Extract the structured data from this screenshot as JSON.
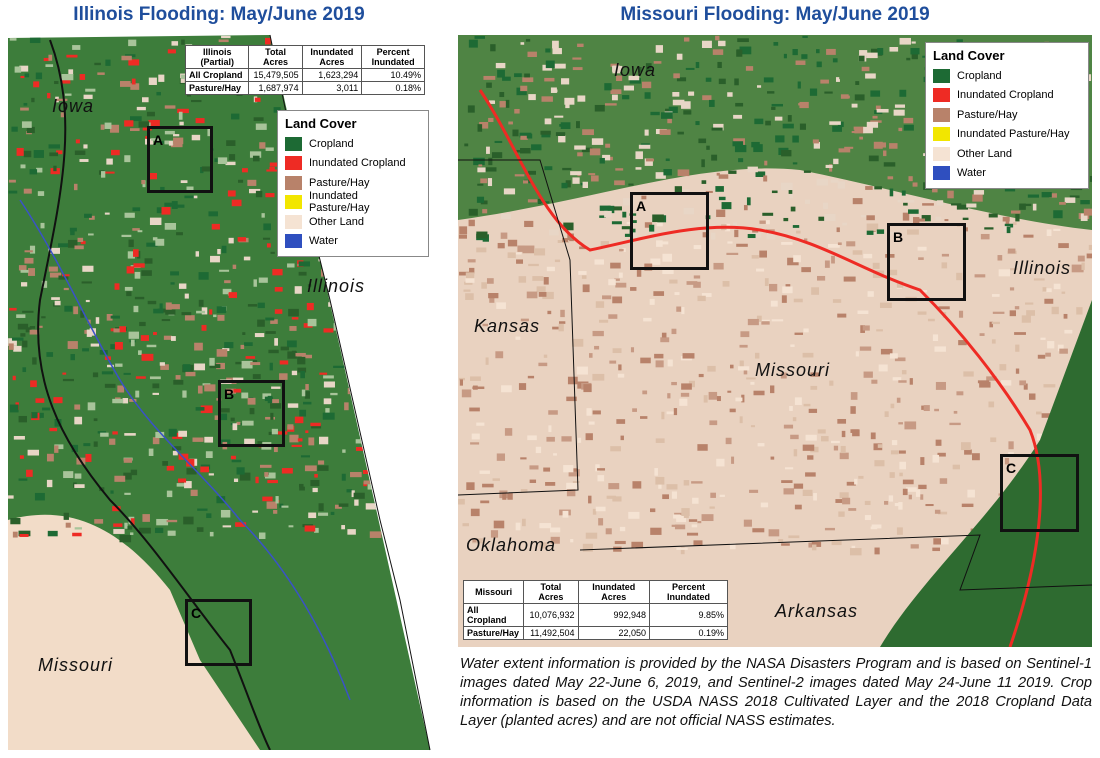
{
  "illinois": {
    "title": "Illinois Flooding: May/June 2019",
    "table": {
      "header": [
        "Illinois (Partial)",
        "Total Acres",
        "Inundated Acres",
        "Percent Inundated"
      ],
      "rows": [
        [
          "All Cropland",
          "15,479,505",
          "1,623,294",
          "10.49%"
        ],
        [
          "Pasture/Hay",
          "1,687,974",
          "3,011",
          "0.18%"
        ]
      ]
    },
    "legend": {
      "title": "Land Cover",
      "items": [
        {
          "label": "Cropland",
          "color": "#1d6a34"
        },
        {
          "label": "Inundated Cropland",
          "color": "#ee2b24"
        },
        {
          "label": "Pasture/Hay",
          "color": "#b8826a"
        },
        {
          "label": "Inundated Pasture/Hay",
          "color": "#f2e600"
        },
        {
          "label": "Other Land",
          "color": "#f5e3d3"
        },
        {
          "label": "Water",
          "color": "#2f4fbf"
        }
      ]
    },
    "places": [
      "Iowa",
      "Illinois",
      "Missouri"
    ],
    "boxes": [
      "A",
      "B",
      "C"
    ]
  },
  "missouri": {
    "title": "Missouri Flooding: May/June 2019",
    "table": {
      "header": [
        "Missouri",
        "Total Acres",
        "Inundated Acres",
        "Percent Inundated"
      ],
      "rows": [
        [
          "All Cropland",
          "10,076,932",
          "992,948",
          "9.85%"
        ],
        [
          "Pasture/Hay",
          "11,492,504",
          "22,050",
          "0.19%"
        ]
      ]
    },
    "legend": {
      "title": "Land Cover",
      "items": [
        {
          "label": "Cropland",
          "color": "#1d6a34"
        },
        {
          "label": "Inundated Cropland",
          "color": "#ee2b24"
        },
        {
          "label": "Pasture/Hay",
          "color": "#b8826a"
        },
        {
          "label": "Inundated Pasture/Hay",
          "color": "#f2e600"
        },
        {
          "label": "Other Land",
          "color": "#f5e3d3"
        },
        {
          "label": "Water",
          "color": "#2f4fbf"
        }
      ]
    },
    "places": [
      "Iowa",
      "Kansas",
      "Missouri",
      "Illinois",
      "Oklahoma",
      "Arkansas"
    ],
    "boxes": [
      "A",
      "B",
      "C"
    ]
  },
  "footnote": "Water extent information is provided by the NASA Disasters Program and is based on Sentinel-1 images dated May 22-June 6, 2019, and Sentinel-2 images dated May 24-June 11 2019. Crop information is based on the USDA NASS 2018 Cultivated Layer and the 2018 Cropland Data Layer (planted acres) and are not official NASS estimates."
}
